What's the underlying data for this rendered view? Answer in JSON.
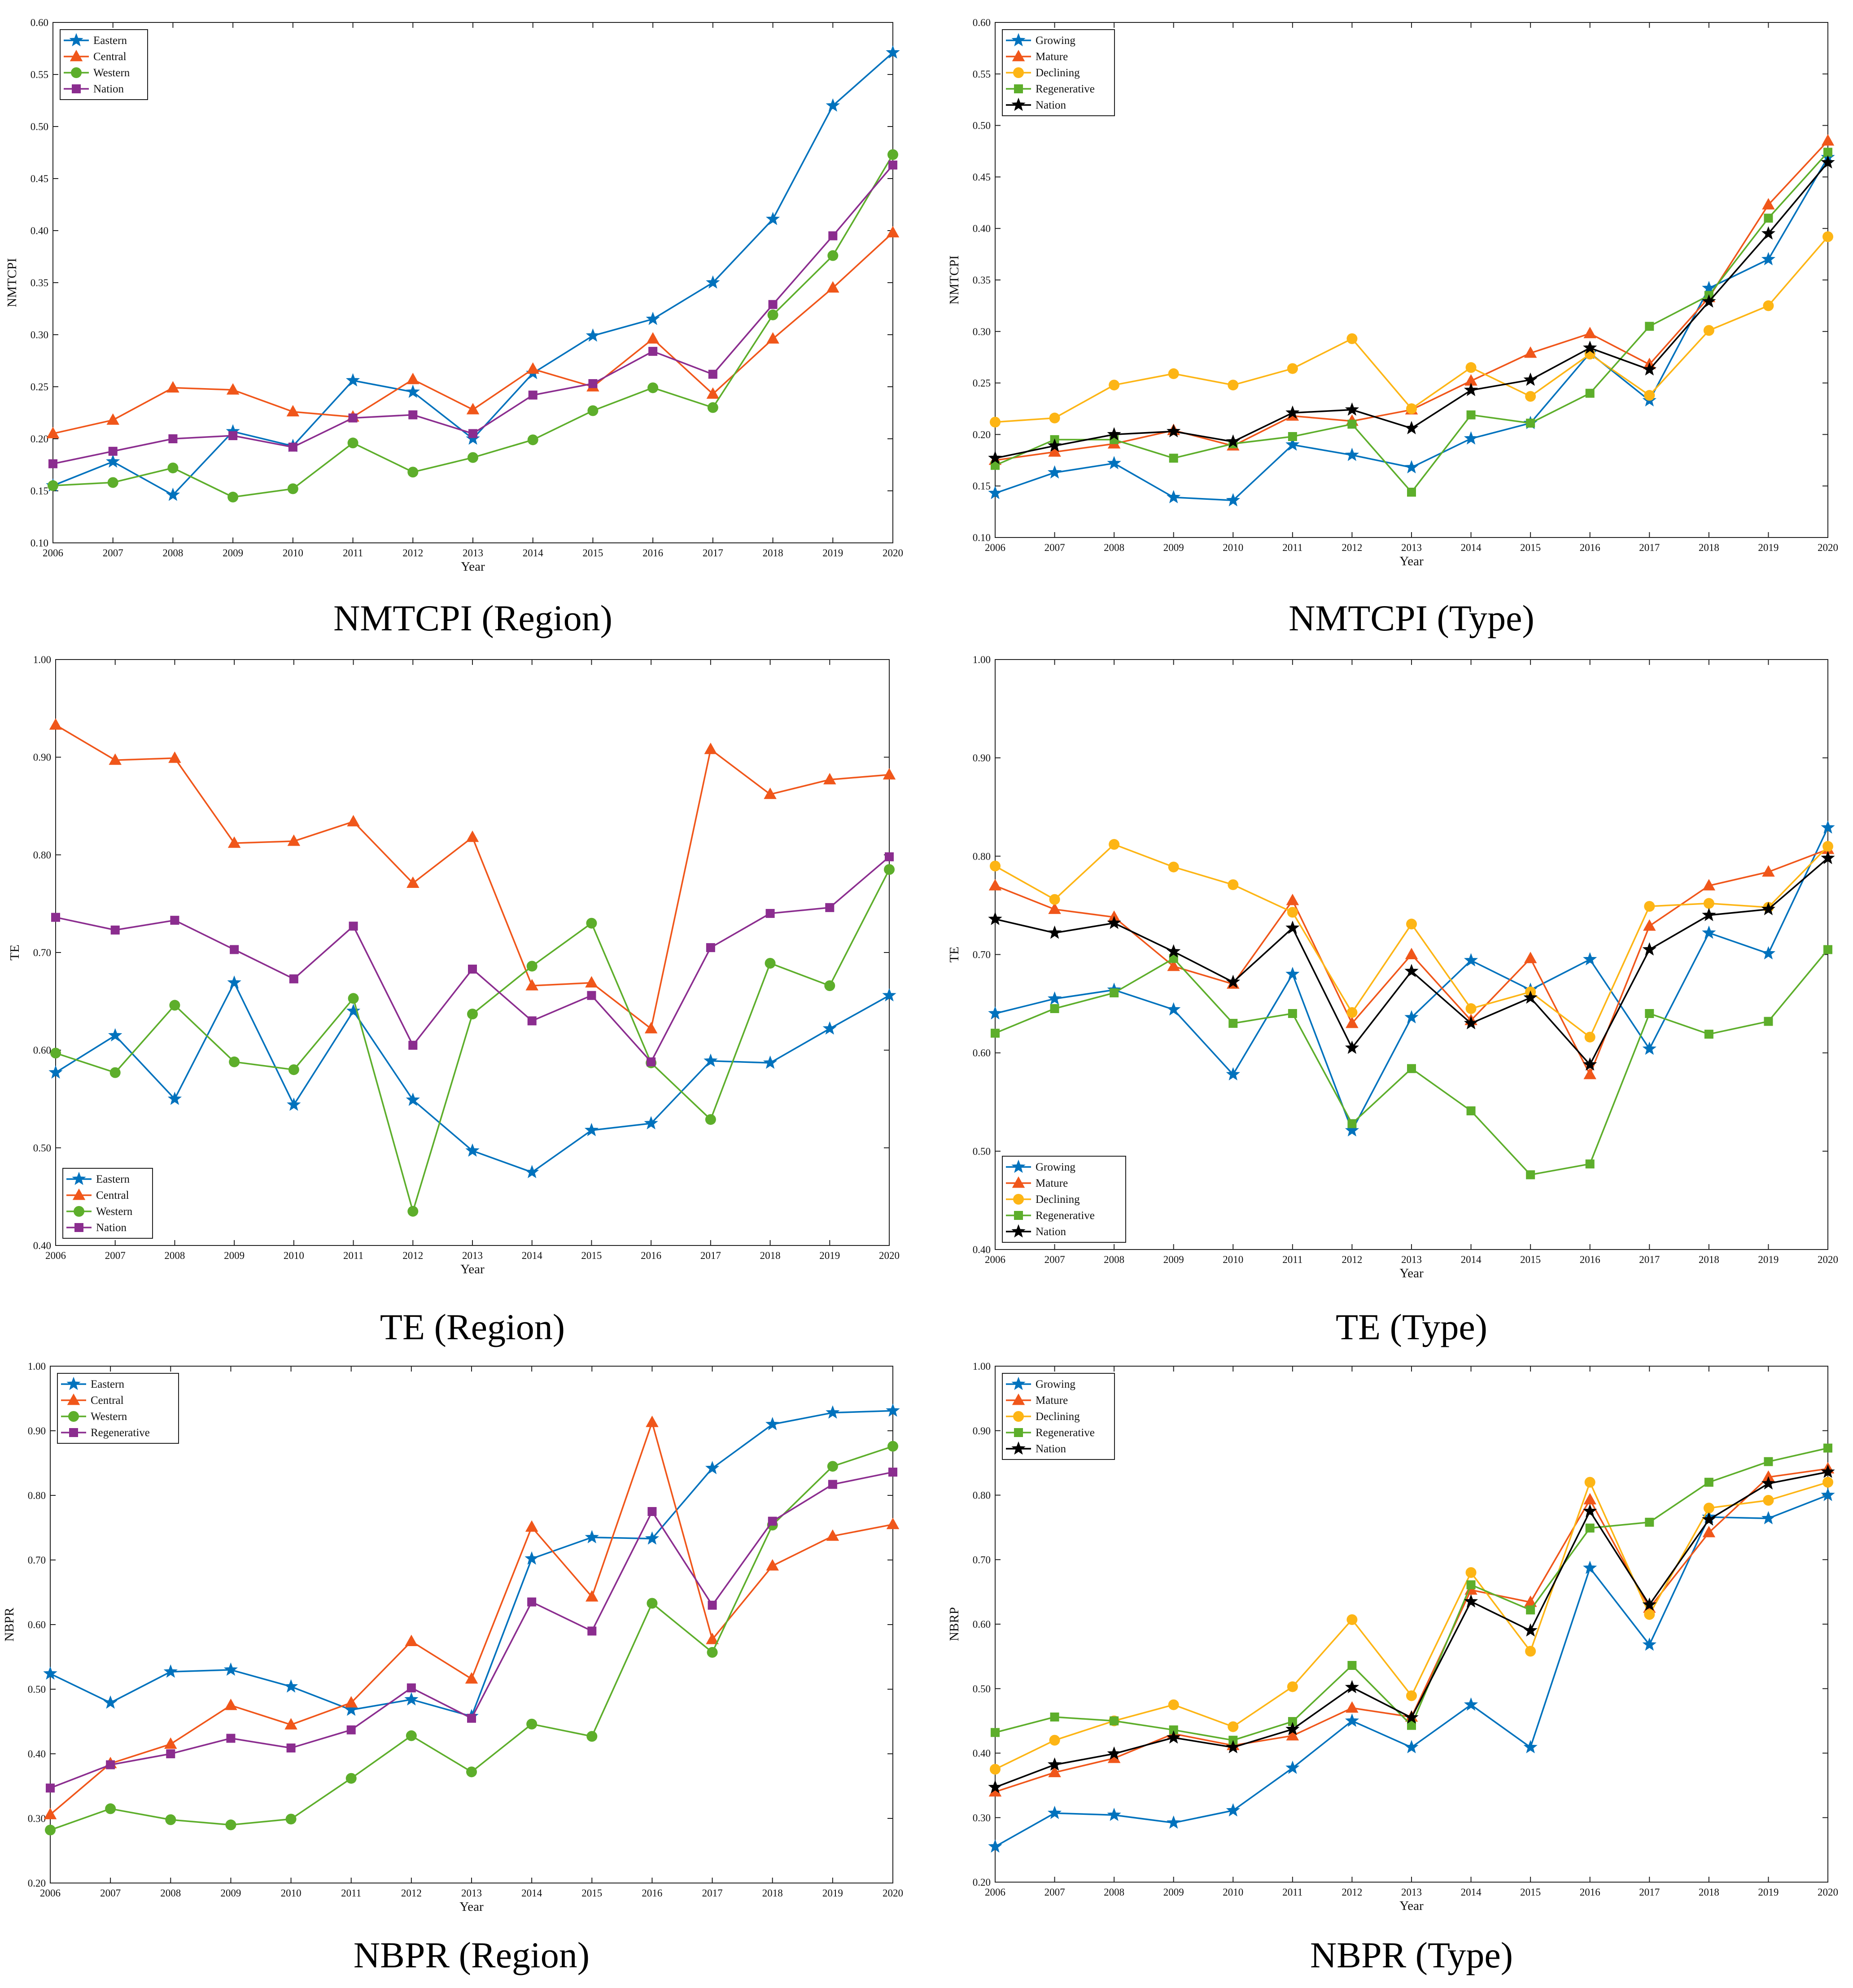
{
  "colors": {
    "blue": "#0072BD",
    "orange": "#F0561A",
    "yellow": "#FDB515",
    "green": "#5DAE2B",
    "purple": "#8B2D8F",
    "black": "#000000"
  },
  "chart_data": [
    {
      "type": "line",
      "caption": "NMTCPI (Region)",
      "xlabel": "Year",
      "ylabel": "NMTCPI",
      "ylim": [
        0.1,
        0.6
      ],
      "yticks": [
        "0.10",
        "0.15",
        "0.20",
        "0.25",
        "0.30",
        "0.35",
        "0.40",
        "0.45",
        "0.50",
        "0.55",
        "0.60"
      ],
      "x": [
        2006,
        2007,
        2008,
        2009,
        2010,
        2011,
        2012,
        2013,
        2014,
        2015,
        2016,
        2017,
        2018,
        2019,
        2020
      ],
      "legend_position": "top-left",
      "series": [
        {
          "name": "Eastern",
          "color": "blue",
          "marker": "star",
          "values": [
            0.155,
            0.178,
            0.146,
            0.207,
            0.193,
            0.256,
            0.245,
            0.2,
            0.263,
            0.299,
            0.315,
            0.35,
            0.411,
            0.52,
            0.571
          ]
        },
        {
          "name": "Central",
          "color": "orange",
          "marker": "triangle",
          "values": [
            0.205,
            0.218,
            0.249,
            0.247,
            0.226,
            0.221,
            0.257,
            0.228,
            0.267,
            0.25,
            0.296,
            0.243,
            0.296,
            0.345,
            0.398
          ]
        },
        {
          "name": "Western",
          "color": "green",
          "marker": "circle",
          "values": [
            0.155,
            0.158,
            0.172,
            0.144,
            0.152,
            0.196,
            0.168,
            0.182,
            0.199,
            0.227,
            0.249,
            0.23,
            0.319,
            0.376,
            0.473
          ]
        },
        {
          "name": "Nation",
          "color": "purple",
          "marker": "square",
          "values": [
            0.176,
            0.188,
            0.2,
            0.203,
            0.192,
            0.22,
            0.223,
            0.205,
            0.242,
            0.253,
            0.284,
            0.262,
            0.329,
            0.395,
            0.463
          ]
        }
      ]
    },
    {
      "type": "line",
      "caption": "NMTCPI (Type)",
      "xlabel": "Year",
      "ylabel": "NMTCPI",
      "ylim": [
        0.1,
        0.6
      ],
      "yticks": [
        "0.10",
        "0.15",
        "0.20",
        "0.25",
        "0.30",
        "0.35",
        "0.40",
        "0.45",
        "0.50",
        "0.55",
        "0.60"
      ],
      "x": [
        2006,
        2007,
        2008,
        2009,
        2010,
        2011,
        2012,
        2013,
        2014,
        2015,
        2016,
        2017,
        2018,
        2019,
        2020
      ],
      "legend_position": "top-left",
      "series": [
        {
          "name": "Growing",
          "color": "blue",
          "marker": "star",
          "values": [
            0.143,
            0.163,
            0.172,
            0.139,
            0.136,
            0.19,
            0.18,
            0.168,
            0.196,
            0.211,
            0.279,
            0.233,
            0.342,
            0.37,
            0.469
          ]
        },
        {
          "name": "Mature",
          "color": "orange",
          "marker": "triangle",
          "values": [
            0.175,
            0.183,
            0.191,
            0.204,
            0.189,
            0.218,
            0.213,
            0.224,
            0.252,
            0.279,
            0.298,
            0.268,
            0.333,
            0.423,
            0.485
          ]
        },
        {
          "name": "Declining",
          "color": "yellow",
          "marker": "circle",
          "values": [
            0.212,
            0.216,
            0.248,
            0.259,
            0.248,
            0.264,
            0.293,
            0.225,
            0.265,
            0.237,
            0.278,
            0.238,
            0.301,
            0.325,
            0.392
          ]
        },
        {
          "name": "Regenerative",
          "color": "green",
          "marker": "square",
          "values": [
            0.17,
            0.195,
            0.195,
            0.177,
            0.191,
            0.198,
            0.21,
            0.144,
            0.219,
            0.211,
            0.24,
            0.305,
            0.335,
            0.41,
            0.474
          ]
        },
        {
          "name": "Nation",
          "color": "black",
          "marker": "star",
          "values": [
            0.177,
            0.189,
            0.2,
            0.203,
            0.193,
            0.221,
            0.224,
            0.206,
            0.243,
            0.253,
            0.284,
            0.263,
            0.329,
            0.395,
            0.464
          ]
        }
      ]
    },
    {
      "type": "line",
      "caption": "TE (Region)",
      "xlabel": "Year",
      "ylabel": "TE",
      "ylim": [
        0.4,
        1.0
      ],
      "yticks": [
        "0.40",
        "0.50",
        "0.60",
        "0.70",
        "0.80",
        "0.90",
        "1.00"
      ],
      "x": [
        2006,
        2007,
        2008,
        2009,
        2010,
        2011,
        2012,
        2013,
        2014,
        2015,
        2016,
        2017,
        2018,
        2019,
        2020
      ],
      "legend_position": "bottom-left",
      "series": [
        {
          "name": "Eastern",
          "color": "blue",
          "marker": "star",
          "values": [
            0.577,
            0.615,
            0.55,
            0.669,
            0.544,
            0.64,
            0.549,
            0.497,
            0.475,
            0.518,
            0.525,
            0.589,
            0.587,
            0.622,
            0.656
          ]
        },
        {
          "name": "Central",
          "color": "orange",
          "marker": "triangle",
          "values": [
            0.933,
            0.897,
            0.899,
            0.812,
            0.814,
            0.834,
            0.771,
            0.818,
            0.666,
            0.669,
            0.622,
            0.908,
            0.862,
            0.877,
            0.882
          ]
        },
        {
          "name": "Western",
          "color": "green",
          "marker": "circle",
          "values": [
            0.597,
            0.577,
            0.646,
            0.588,
            0.58,
            0.653,
            0.435,
            0.637,
            0.686,
            0.73,
            0.587,
            0.529,
            0.689,
            0.666,
            0.785
          ]
        },
        {
          "name": "Nation",
          "color": "purple",
          "marker": "square",
          "values": [
            0.736,
            0.723,
            0.733,
            0.703,
            0.673,
            0.727,
            0.605,
            0.683,
            0.63,
            0.656,
            0.588,
            0.705,
            0.74,
            0.746,
            0.798
          ]
        }
      ]
    },
    {
      "type": "line",
      "caption": "TE (Type)",
      "xlabel": "Year",
      "ylabel": "TE",
      "ylim": [
        0.4,
        1.0
      ],
      "yticks": [
        "0.40",
        "0.50",
        "0.60",
        "0.70",
        "0.80",
        "0.90",
        "1.00"
      ],
      "x": [
        2006,
        2007,
        2008,
        2009,
        2010,
        2011,
        2012,
        2013,
        2014,
        2015,
        2016,
        2017,
        2018,
        2019,
        2020
      ],
      "legend_position": "bottom-left",
      "series": [
        {
          "name": "Growing",
          "color": "blue",
          "marker": "star",
          "values": [
            0.64,
            0.655,
            0.664,
            0.644,
            0.578,
            0.68,
            0.521,
            0.636,
            0.694,
            0.664,
            0.695,
            0.604,
            0.722,
            0.701,
            0.829
          ]
        },
        {
          "name": "Mature",
          "color": "orange",
          "marker": "triangle",
          "values": [
            0.77,
            0.746,
            0.738,
            0.688,
            0.67,
            0.755,
            0.63,
            0.7,
            0.633,
            0.696,
            0.578,
            0.729,
            0.77,
            0.784,
            0.807
          ]
        },
        {
          "name": "Declining",
          "color": "yellow",
          "marker": "circle",
          "values": [
            0.79,
            0.756,
            0.812,
            0.789,
            0.771,
            0.743,
            0.641,
            0.731,
            0.645,
            0.662,
            0.616,
            0.749,
            0.752,
            0.748,
            0.81
          ]
        },
        {
          "name": "Regenerative",
          "color": "green",
          "marker": "square",
          "values": [
            0.62,
            0.645,
            0.661,
            0.696,
            0.63,
            0.64,
            0.528,
            0.584,
            0.541,
            0.476,
            0.487,
            0.64,
            0.619,
            0.632,
            0.705
          ]
        },
        {
          "name": "Nation",
          "color": "black",
          "marker": "star",
          "values": [
            0.736,
            0.722,
            0.732,
            0.703,
            0.672,
            0.727,
            0.605,
            0.683,
            0.63,
            0.656,
            0.588,
            0.705,
            0.74,
            0.746,
            0.798
          ]
        }
      ]
    },
    {
      "type": "line",
      "caption": "NBPR (Region)",
      "xlabel": "Year",
      "ylabel": "NBPR",
      "ylim": [
        0.2,
        1.0
      ],
      "yticks": [
        "0.20",
        "0.30",
        "0.40",
        "0.50",
        "0.60",
        "0.70",
        "0.80",
        "0.90",
        "1.00"
      ],
      "x": [
        2006,
        2007,
        2008,
        2009,
        2010,
        2011,
        2012,
        2013,
        2014,
        2015,
        2016,
        2017,
        2018,
        2019,
        2020
      ],
      "legend_position": "top-left",
      "series": [
        {
          "name": "Eastern",
          "color": "blue",
          "marker": "star",
          "values": [
            0.524,
            0.479,
            0.527,
            0.53,
            0.504,
            0.468,
            0.484,
            0.458,
            0.702,
            0.735,
            0.733,
            0.842,
            0.91,
            0.928,
            0.931
          ]
        },
        {
          "name": "Central",
          "color": "orange",
          "marker": "triangle",
          "values": [
            0.306,
            0.385,
            0.415,
            0.475,
            0.445,
            0.479,
            0.574,
            0.516,
            0.751,
            0.643,
            0.913,
            0.577,
            0.691,
            0.737,
            0.755
          ]
        },
        {
          "name": "Western",
          "color": "green",
          "marker": "circle",
          "values": [
            0.282,
            0.315,
            0.298,
            0.29,
            0.299,
            0.362,
            0.428,
            0.372,
            0.446,
            0.427,
            0.633,
            0.557,
            0.754,
            0.845,
            0.876
          ]
        },
        {
          "name": "Regenerative",
          "color": "purple",
          "marker": "square",
          "values": [
            0.347,
            0.383,
            0.4,
            0.424,
            0.409,
            0.437,
            0.502,
            0.455,
            0.635,
            0.59,
            0.775,
            0.63,
            0.76,
            0.817,
            0.836
          ]
        }
      ]
    },
    {
      "type": "line",
      "caption": "NBPR (Type)",
      "xlabel": "Year",
      "ylabel": "NBRP",
      "ylim": [
        0.2,
        1.0
      ],
      "yticks": [
        "0.20",
        "0.30",
        "0.40",
        "0.50",
        "0.60",
        "0.70",
        "0.80",
        "0.90",
        "1.00"
      ],
      "x": [
        2006,
        2007,
        2008,
        2009,
        2010,
        2011,
        2012,
        2013,
        2014,
        2015,
        2016,
        2017,
        2018,
        2019,
        2020
      ],
      "legend_position": "top-left",
      "series": [
        {
          "name": "Growing",
          "color": "blue",
          "marker": "star",
          "values": [
            0.255,
            0.307,
            0.304,
            0.292,
            0.311,
            0.377,
            0.45,
            0.409,
            0.475,
            0.409,
            0.687,
            0.568,
            0.766,
            0.764,
            0.8
          ]
        },
        {
          "name": "Mature",
          "color": "orange",
          "marker": "triangle",
          "values": [
            0.34,
            0.37,
            0.392,
            0.43,
            0.412,
            0.427,
            0.47,
            0.456,
            0.653,
            0.634,
            0.793,
            0.625,
            0.742,
            0.828,
            0.841
          ]
        },
        {
          "name": "Declining",
          "color": "yellow",
          "marker": "circle",
          "values": [
            0.375,
            0.42,
            0.45,
            0.475,
            0.441,
            0.503,
            0.607,
            0.489,
            0.68,
            0.558,
            0.82,
            0.615,
            0.78,
            0.792,
            0.82
          ]
        },
        {
          "name": "Regenerative",
          "color": "green",
          "marker": "square",
          "values": [
            0.432,
            0.456,
            0.45,
            0.436,
            0.42,
            0.449,
            0.536,
            0.443,
            0.661,
            0.622,
            0.749,
            0.758,
            0.82,
            0.852,
            0.873
          ]
        },
        {
          "name": "Nation",
          "color": "black",
          "marker": "star",
          "values": [
            0.347,
            0.382,
            0.399,
            0.424,
            0.409,
            0.437,
            0.502,
            0.455,
            0.635,
            0.59,
            0.775,
            0.63,
            0.762,
            0.818,
            0.836
          ]
        }
      ]
    }
  ]
}
